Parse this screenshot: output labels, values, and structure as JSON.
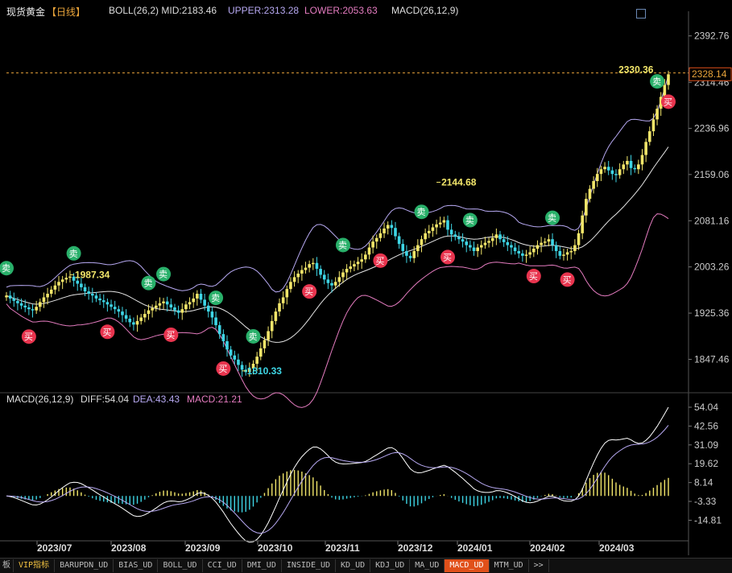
{
  "header": {
    "title": "现货黄金",
    "period": "【日线】",
    "boll": "BOLL(26,2) MID:2183.46",
    "upper": "UPPER:2313.28",
    "lower": "LOWER:2053.63",
    "macd": "MACD(26,12,9)"
  },
  "macd_header": {
    "name": "MACD(26,12,9)",
    "diff": "DIFF:54.04",
    "dea": "DEA:43.43",
    "macd": "MACD:21.21"
  },
  "colors": {
    "up": "#f2e66a",
    "down": "#3ed6e6",
    "upper": "#b7a9f2",
    "lower": "#e57cc0",
    "mid": "#e6e6e6",
    "buy": "#e8344e",
    "sell": "#29b06a",
    "hist_pos": "#f2e66a",
    "hist_neg": "#3ed6e6"
  },
  "tabs": [
    "VIP指标",
    "BARUPDN_UD",
    "BIAS_UD",
    "BOLL_UD",
    "CCI_UD",
    "DMI_UD",
    "INSIDE_UD",
    "KD_UD",
    "KDJ_UD",
    "MA_UD",
    "MACD_UD",
    "MTM_UD",
    ">>"
  ],
  "side_labels": {
    "left_edge": "板",
    "buy": "买",
    "sell": "卖"
  },
  "chart_data": [
    {
      "type": "candlestick",
      "title": "现货黄金",
      "y_ticks": [
        2392.76,
        2314.46,
        2236.96,
        2159.06,
        2081.16,
        2003.26,
        1925.36,
        1847.46
      ],
      "ylim": [
        1802,
        2418
      ],
      "x_ticks": [
        "2023/07",
        "2023/08",
        "2023/09",
        "2023/10",
        "2023/11",
        "2023/12",
        "2024/01",
        "2024/02",
        "2024/03"
      ],
      "current_price": "2328.14",
      "annotations": [
        "2330.36",
        "2144.68",
        "1987.34",
        "1810.33"
      ],
      "close_series": [
        1955,
        1950,
        1946,
        1942,
        1938,
        1935,
        1932,
        1930,
        1936,
        1944,
        1952,
        1958,
        1965,
        1972,
        1978,
        1982,
        1985,
        1987,
        1980,
        1975,
        1969,
        1962,
        1958,
        1955,
        1950,
        1947,
        1944,
        1940,
        1936,
        1932,
        1928,
        1922,
        1916,
        1910,
        1906,
        1912,
        1918,
        1924,
        1930,
        1934,
        1938,
        1942,
        1945,
        1940,
        1935,
        1930,
        1926,
        1932,
        1940,
        1944,
        1950,
        1958,
        1948,
        1938,
        1928,
        1918,
        1905,
        1890,
        1878,
        1864,
        1854,
        1847,
        1838,
        1830,
        1826,
        1832,
        1840,
        1852,
        1866,
        1880,
        1895,
        1912,
        1928,
        1942,
        1952,
        1966,
        1978,
        1986,
        1992,
        1998,
        2002,
        2008,
        2010,
        2000,
        1990,
        1982,
        1976,
        1972,
        1978,
        1986,
        1994,
        2000,
        2004,
        2008,
        2012,
        2016,
        2024,
        2036,
        2046,
        2052,
        2060,
        2068,
        2074,
        2069,
        2055,
        2042,
        2030,
        2022,
        2018,
        2030,
        2040,
        2050,
        2060,
        2064,
        2070,
        2075,
        2078,
        2082,
        2066,
        2058,
        2054,
        2050,
        2046,
        2040,
        2036,
        2030,
        2036,
        2040,
        2044,
        2047,
        2052,
        2058,
        2050,
        2045,
        2040,
        2036,
        2030,
        2026,
        2022,
        2024,
        2028,
        2034,
        2040,
        2044,
        2046,
        2050,
        2040,
        2030,
        2022,
        2024,
        2028,
        2030,
        2040,
        2060,
        2090,
        2118,
        2135,
        2148,
        2160,
        2168,
        2172,
        2166,
        2160,
        2158,
        2168,
        2176,
        2182,
        2170,
        2168,
        2176,
        2192,
        2214,
        2232,
        2252,
        2270,
        2290,
        2310,
        2328
      ]
    },
    {
      "type": "macd",
      "title": "MACD(26,12,9)",
      "y_ticks": [
        54.04,
        42.56,
        31.09,
        19.62,
        8.14,
        -3.33,
        -14.81
      ],
      "ylim": [
        -19,
        56
      ],
      "diff": 54.04,
      "dea": 43.43,
      "macd": 21.21
    }
  ]
}
